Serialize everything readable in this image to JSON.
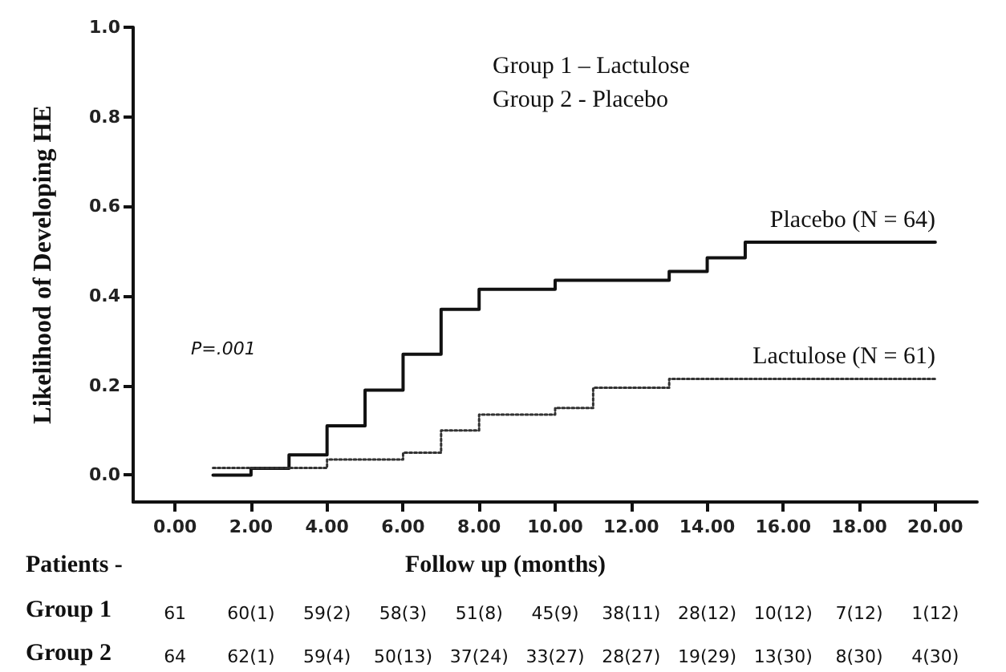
{
  "chart_data": {
    "type": "step",
    "xlabel": "Follow up (months)",
    "ylabel": "Likelihood of Developing HE",
    "xlim": [
      -1.1,
      21.1
    ],
    "ylim": [
      -0.06,
      1.0
    ],
    "xticks": [
      {
        "value": 0,
        "label": "0.00"
      },
      {
        "value": 2,
        "label": "2.00"
      },
      {
        "value": 4,
        "label": "4.00"
      },
      {
        "value": 6,
        "label": "6.00"
      },
      {
        "value": 8,
        "label": "8.00"
      },
      {
        "value": 10,
        "label": "10.00"
      },
      {
        "value": 12,
        "label": "12.00"
      },
      {
        "value": 14,
        "label": "14.00"
      },
      {
        "value": 16,
        "label": "16.00"
      },
      {
        "value": 18,
        "label": "18.00"
      },
      {
        "value": 20,
        "label": "20.00"
      }
    ],
    "yticks": [
      {
        "value": 0,
        "label": "0.0"
      },
      {
        "value": 0.2,
        "label": "0.2"
      },
      {
        "value": 0.4,
        "label": "0.4"
      },
      {
        "value": 0.6,
        "label": "0.6"
      },
      {
        "value": 0.8,
        "label": "0.8"
      },
      {
        "value": 1,
        "label": "1.0"
      }
    ],
    "grid": false,
    "legend": false,
    "marker": "none",
    "series": [
      {
        "name": "Placebo (N = 64)",
        "color": "#111111",
        "line_style": "solid",
        "x": [
          1,
          2,
          3,
          4,
          5,
          6,
          7,
          8,
          10,
          13,
          14,
          15,
          20
        ],
        "values": [
          0.0,
          0.015,
          0.045,
          0.11,
          0.19,
          0.27,
          0.37,
          0.415,
          0.435,
          0.455,
          0.485,
          0.52,
          0.52
        ]
      },
      {
        "name": "Lactulose (N = 61)",
        "color": "#333333",
        "line_style": "dotted",
        "x": [
          1,
          4,
          6,
          7,
          8,
          10,
          11,
          13,
          20
        ],
        "values": [
          0.016,
          0.035,
          0.05,
          0.1,
          0.135,
          0.15,
          0.195,
          0.215,
          0.215
        ]
      }
    ],
    "annotations": [
      "Group 1 – Lactulose",
      "Group 2 - Placebo",
      "P=.001",
      "Patients -",
      "Group 1",
      "61",
      "60(1)",
      "59(2)",
      "58(3)",
      "51(8)",
      "45(9)",
      "38(11)",
      "28(12)",
      "10(12)",
      "7(12)",
      "1(12)",
      "Group 2",
      "64",
      "62(1)",
      "59(4)",
      "50(13)",
      "37(24)",
      "33(27)",
      "28(27)",
      "19(29)",
      "13(30)",
      "8(30)",
      "4(30)"
    ]
  }
}
